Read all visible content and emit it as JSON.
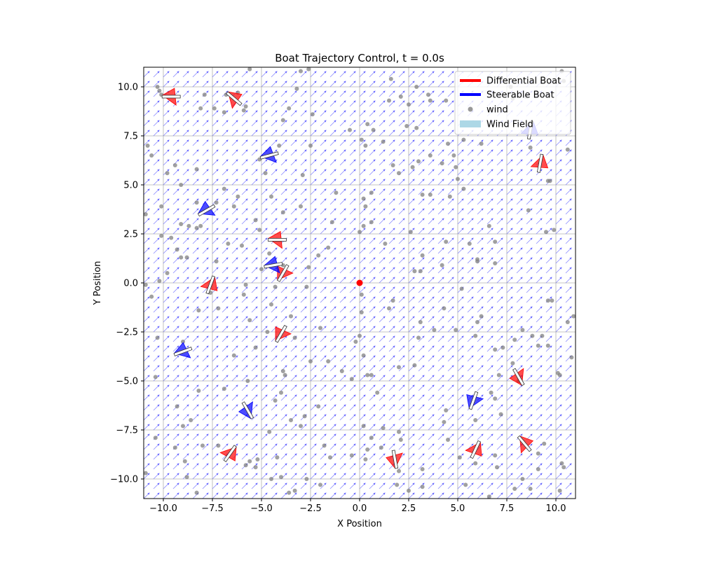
{
  "chart_data": {
    "type": "scatter",
    "title": "Boat Trajectory Control, t = 0.0s",
    "xlabel": "X Position",
    "ylabel": "Y Position",
    "xlim": [
      -11,
      11
    ],
    "ylim": [
      -11,
      11
    ],
    "grid": true,
    "x_ticks": [
      -10.0,
      -7.5,
      -5.0,
      -2.5,
      0.0,
      2.5,
      5.0,
      7.5,
      10.0
    ],
    "y_ticks": [
      -10.0,
      -7.5,
      -5.0,
      -2.5,
      0.0,
      2.5,
      5.0,
      7.5,
      10.0
    ],
    "x_tick_labels": [
      "−10.0",
      "−7.5",
      "−5.0",
      "−2.5",
      "0.0",
      "2.5",
      "5.0",
      "7.5",
      "10.0"
    ],
    "y_tick_labels": [
      "−10.0",
      "−7.5",
      "−5.0",
      "−2.5",
      "0.0",
      "2.5",
      "5.0",
      "7.5",
      "10.0"
    ],
    "legend_position": "top-right",
    "legend": [
      {
        "label": "Differential Boat",
        "kind": "line",
        "color": "#ff0000"
      },
      {
        "label": "Steerable Boat",
        "kind": "line",
        "color": "#0000ff"
      },
      {
        "label": "wind",
        "kind": "dot",
        "color": "#808080"
      },
      {
        "label": "Wind Field",
        "kind": "patch",
        "color": "#add8e6"
      }
    ],
    "wind_field": {
      "direction_deg": 45,
      "color": "#6666ff",
      "grid_spacing": 0.5
    },
    "center_point": {
      "x": 0.0,
      "y": 0.0,
      "color": "#ff0000"
    },
    "differential_boats": [
      {
        "x": -9.6,
        "y": 9.5,
        "heading": 300
      },
      {
        "x": -6.4,
        "y": 9.4,
        "heading": 260
      },
      {
        "x": 9.2,
        "y": 6.1,
        "heading": 200
      },
      {
        "x": -4.2,
        "y": 2.2,
        "heading": 300
      },
      {
        "x": -3.9,
        "y": 0.5,
        "heading": 0
      },
      {
        "x": -7.6,
        "y": -0.1,
        "heading": 190
      },
      {
        "x": -4.0,
        "y": -2.6,
        "heading": 0
      },
      {
        "x": 8.1,
        "y": -4.8,
        "heading": 60
      },
      {
        "x": -6.6,
        "y": -8.7,
        "heading": 175
      },
      {
        "x": 5.9,
        "y": -8.5,
        "heading": 185
      },
      {
        "x": 8.4,
        "y": -8.2,
        "heading": 250
      },
      {
        "x": 1.8,
        "y": -9.0,
        "heading": 40
      }
    ],
    "steerable_boats": [
      {
        "x": -4.6,
        "y": 6.5,
        "heading": 315
      },
      {
        "x": -7.8,
        "y": 3.7,
        "heading": 330
      },
      {
        "x": -4.4,
        "y": 0.9,
        "heading": 310
      },
      {
        "x": -9.0,
        "y": -3.5,
        "heading": 320
      },
      {
        "x": -5.7,
        "y": -6.5,
        "heading": 60
      },
      {
        "x": 5.8,
        "y": -6.0,
        "heading": 10
      },
      {
        "x": 8.7,
        "y": 7.8,
        "heading": 200
      }
    ],
    "wind_points": [
      [
        -10.9,
        3.5
      ],
      [
        -10.8,
        7.0
      ],
      [
        -10.6,
        6.5
      ],
      [
        -10.3,
        10.0
      ],
      [
        -10.2,
        9.8
      ],
      [
        -10.1,
        9.6
      ],
      [
        -9.8,
        5.6
      ],
      [
        -9.4,
        6.0
      ],
      [
        -9.1,
        5.0
      ],
      [
        -8.3,
        5.8
      ],
      [
        -8.1,
        8.9
      ],
      [
        -7.9,
        9.6
      ],
      [
        -7.4,
        8.9
      ],
      [
        -6.9,
        8.7
      ],
      [
        -6.8,
        9.6
      ],
      [
        -6.2,
        9.7
      ],
      [
        -5.9,
        8.8
      ],
      [
        -5.8,
        9.0
      ],
      [
        -5.6,
        10.9
      ],
      [
        -5.3,
        3.2
      ],
      [
        -5.1,
        6.3
      ],
      [
        -4.8,
        5.6
      ],
      [
        -4.5,
        4.4
      ],
      [
        -4.1,
        7.0
      ],
      [
        -3.9,
        8.3
      ],
      [
        -3.6,
        8.9
      ],
      [
        -3.2,
        9.9
      ],
      [
        -3.0,
        10.8
      ],
      [
        -2.6,
        10.9
      ],
      [
        -2.4,
        8.6
      ],
      [
        -2.5,
        7.0
      ],
      [
        -2.9,
        5.5
      ],
      [
        -3.0,
        3.9
      ],
      [
        -3.9,
        3.6
      ],
      [
        -6.2,
        4.4
      ],
      [
        -6.4,
        3.9
      ],
      [
        -6.9,
        4.8
      ],
      [
        -7.3,
        4.1
      ],
      [
        -8.3,
        4.1
      ],
      [
        -8.7,
        2.9
      ],
      [
        -9.1,
        3.0
      ],
      [
        -9.6,
        2.3
      ],
      [
        -10.1,
        2.4
      ],
      [
        -10.1,
        3.9
      ],
      [
        -10.9,
        -0.1
      ],
      [
        -10.6,
        -0.7
      ],
      [
        -10.2,
        0.1
      ],
      [
        -9.8,
        0.5
      ],
      [
        -9.3,
        1.7
      ],
      [
        -9.1,
        1.3
      ],
      [
        -8.8,
        1.3
      ],
      [
        -8.3,
        2.8
      ],
      [
        -8.1,
        2.9
      ],
      [
        -7.3,
        1.1
      ],
      [
        -6.7,
        2.0
      ],
      [
        -6.0,
        1.9
      ],
      [
        -5.1,
        2.7
      ],
      [
        -4.6,
        1.5
      ],
      [
        -5.0,
        0.7
      ],
      [
        -5.8,
        -0.1
      ],
      [
        -7.6,
        -0.5
      ],
      [
        -8.2,
        -1.4
      ],
      [
        -7.2,
        -1.3
      ],
      [
        -5.6,
        -1.9
      ],
      [
        -4.5,
        -1.1
      ],
      [
        -4.7,
        -2.5
      ],
      [
        -5.3,
        -3.3
      ],
      [
        -6.4,
        -3.7
      ],
      [
        -3.5,
        -1.7
      ],
      [
        -3.3,
        -2.8
      ],
      [
        -2.6,
        0.8
      ],
      [
        -2.1,
        1.4
      ],
      [
        -1.6,
        1.8
      ],
      [
        -1.4,
        3.1
      ],
      [
        -1.2,
        4.6
      ],
      [
        -0.5,
        7.8
      ],
      [
        0.1,
        7.3
      ],
      [
        0.3,
        7.0
      ],
      [
        0.4,
        8.1
      ],
      [
        0.7,
        7.8
      ],
      [
        1.2,
        7.2
      ],
      [
        1.5,
        9.3
      ],
      [
        1.6,
        10.4
      ],
      [
        2.1,
        9.5
      ],
      [
        2.5,
        9.1
      ],
      [
        2.9,
        10.0
      ],
      [
        2.4,
        8.0
      ],
      [
        2.9,
        7.9
      ],
      [
        3.5,
        9.6
      ],
      [
        3.6,
        9.3
      ],
      [
        4.4,
        9.3
      ],
      [
        4.2,
        6.1
      ],
      [
        3.6,
        6.5
      ],
      [
        3.0,
        6.2
      ],
      [
        2.7,
        5.9
      ],
      [
        2.0,
        5.6
      ],
      [
        1.7,
        6.0
      ],
      [
        4.5,
        7.1
      ],
      [
        4.8,
        6.5
      ],
      [
        5.0,
        5.3
      ],
      [
        5.3,
        4.8
      ],
      [
        4.6,
        4.4
      ],
      [
        3.2,
        4.5
      ],
      [
        3.6,
        4.5
      ],
      [
        0.6,
        4.6
      ],
      [
        0.2,
        4.3
      ],
      [
        0.3,
        3.9
      ],
      [
        0.2,
        2.9
      ],
      [
        0.0,
        2.6
      ],
      [
        0.6,
        3.1
      ],
      [
        1.3,
        2.0
      ],
      [
        2.6,
        2.6
      ],
      [
        2.8,
        0.6
      ],
      [
        3.1,
        0.6
      ],
      [
        3.2,
        1.4
      ],
      [
        4.4,
        2.1
      ],
      [
        4.2,
        0.9
      ],
      [
        5.2,
        -0.3
      ],
      [
        4.3,
        -1.3
      ],
      [
        4.9,
        -2.4
      ],
      [
        5.9,
        -2.7
      ],
      [
        6.0,
        -2.0
      ],
      [
        6.2,
        -1.7
      ],
      [
        6.6,
        2.9
      ],
      [
        6.9,
        2.1
      ],
      [
        5.6,
        2.0
      ],
      [
        6.0,
        1.2
      ],
      [
        6.0,
        1.1
      ],
      [
        6.9,
        1.0
      ],
      [
        8.6,
        3.7
      ],
      [
        9.5,
        2.6
      ],
      [
        9.9,
        2.7
      ],
      [
        9.6,
        5.2
      ],
      [
        9.7,
        5.2
      ],
      [
        10.6,
        6.8
      ],
      [
        10.3,
        10.8
      ],
      [
        10.4,
        10.3
      ],
      [
        8.7,
        6.9
      ],
      [
        7.7,
        10.0
      ],
      [
        7.8,
        9.4
      ],
      [
        8.5,
        9.5
      ],
      [
        6.2,
        7.1
      ],
      [
        5.3,
        7.3
      ],
      [
        4.9,
        5.9
      ],
      [
        10.1,
        -4.6
      ],
      [
        10.2,
        -4.7
      ],
      [
        10.8,
        -3.8
      ],
      [
        10.9,
        -1.7
      ],
      [
        10.6,
        -2.0
      ],
      [
        9.6,
        -0.9
      ],
      [
        9.8,
        -0.9
      ],
      [
        9.3,
        -2.7
      ],
      [
        9.1,
        -3.2
      ],
      [
        9.6,
        -3.2
      ],
      [
        8.3,
        -2.4
      ],
      [
        8.8,
        -2.7
      ],
      [
        7.9,
        -2.9
      ],
      [
        7.3,
        -3.3
      ],
      [
        6.9,
        -3.4
      ],
      [
        7.1,
        -4.7
      ],
      [
        7.8,
        -4.1
      ],
      [
        8.1,
        -5.0
      ],
      [
        6.7,
        -5.6
      ],
      [
        6.9,
        -5.9
      ],
      [
        7.2,
        -6.7
      ],
      [
        5.9,
        -7.0
      ],
      [
        4.4,
        -6.5
      ],
      [
        4.3,
        -7.1
      ],
      [
        4.5,
        -8.0
      ],
      [
        5.1,
        -8.9
      ],
      [
        5.9,
        -9.2
      ],
      [
        5.4,
        -10.3
      ],
      [
        6.6,
        -10.9
      ],
      [
        7.0,
        -9.4
      ],
      [
        6.9,
        -8.8
      ],
      [
        7.9,
        -10.5
      ],
      [
        8.3,
        -10.0
      ],
      [
        8.7,
        -10.5
      ],
      [
        9.1,
        -9.5
      ],
      [
        9.1,
        -8.7
      ],
      [
        9.4,
        -8.2
      ],
      [
        10.3,
        -9.2
      ],
      [
        10.4,
        -9.4
      ],
      [
        10.2,
        -10.6
      ],
      [
        3.2,
        -9.5
      ],
      [
        3.2,
        -10.4
      ],
      [
        2.5,
        -10.6
      ],
      [
        1.9,
        -10.3
      ],
      [
        2.0,
        -9.6
      ],
      [
        2.1,
        -8.0
      ],
      [
        2.0,
        -7.6
      ],
      [
        1.2,
        -7.4
      ],
      [
        1.1,
        -8.4
      ],
      [
        0.6,
        -7.9
      ],
      [
        0.2,
        -7.3
      ],
      [
        0.4,
        -8.5
      ],
      [
        0.3,
        -9.0
      ],
      [
        -0.4,
        -8.8
      ],
      [
        -1.5,
        -8.9
      ],
      [
        -1.8,
        -8.3
      ],
      [
        -2.7,
        -10.0
      ],
      [
        -2.0,
        -10.3
      ],
      [
        -3.3,
        -10.6
      ],
      [
        -3.6,
        -10.7
      ],
      [
        -4.0,
        -9.9
      ],
      [
        -4.5,
        -10.0
      ],
      [
        -4.2,
        -8.9
      ],
      [
        -4.6,
        -7.6
      ],
      [
        -5.2,
        -9.0
      ],
      [
        -5.3,
        -9.4
      ],
      [
        -5.6,
        -9.1
      ],
      [
        -5.8,
        -9.3
      ],
      [
        -7.2,
        -8.3
      ],
      [
        -8.0,
        -8.3
      ],
      [
        -8.6,
        -7.0
      ],
      [
        -9.0,
        -7.3
      ],
      [
        -9.4,
        -8.4
      ],
      [
        -8.9,
        -9.1
      ],
      [
        -8.8,
        -9.9
      ],
      [
        -8.3,
        -10.7
      ],
      [
        -9.3,
        -6.3
      ],
      [
        -10.4,
        -7.9
      ],
      [
        -10.9,
        -9.7
      ],
      [
        -10.4,
        -4.8
      ],
      [
        -10.3,
        -2.8
      ],
      [
        -9.0,
        -3.0
      ],
      [
        -8.2,
        -5.5
      ],
      [
        -6.9,
        -5.4
      ],
      [
        -3.9,
        -4.5
      ],
      [
        -3.8,
        -4.7
      ],
      [
        -2.5,
        -4.0
      ],
      [
        -1.6,
        -4.0
      ],
      [
        -2.0,
        -2.3
      ],
      [
        -0.2,
        -3.0
      ],
      [
        0.2,
        -3.7
      ],
      [
        0.0,
        -2.7
      ],
      [
        0.1,
        -1.5
      ],
      [
        0.1,
        -0.6
      ],
      [
        0.4,
        -4.7
      ],
      [
        0.6,
        -4.7
      ],
      [
        0.9,
        -5.6
      ],
      [
        2.0,
        -4.3
      ],
      [
        2.8,
        -4.2
      ],
      [
        3.0,
        -2.8
      ],
      [
        3.8,
        -2.4
      ],
      [
        3.1,
        -2.0
      ],
      [
        1.7,
        -0.9
      ],
      [
        1.5,
        -1.3
      ],
      [
        -0.4,
        -4.9
      ],
      [
        -0.9,
        -4.5
      ],
      [
        -2.1,
        -6.3
      ],
      [
        -2.8,
        -6.8
      ],
      [
        -4.0,
        -5.6
      ],
      [
        -5.7,
        -5.0
      ],
      [
        -3.5,
        -7.0
      ],
      [
        -3.0,
        -7.3
      ],
      [
        -4.3,
        -6.0
      ],
      [
        -5.9,
        -0.6
      ],
      [
        -4.3,
        -0.2
      ],
      [
        -3.9,
        0.9
      ],
      [
        -2.7,
        -0.2
      ]
    ]
  }
}
